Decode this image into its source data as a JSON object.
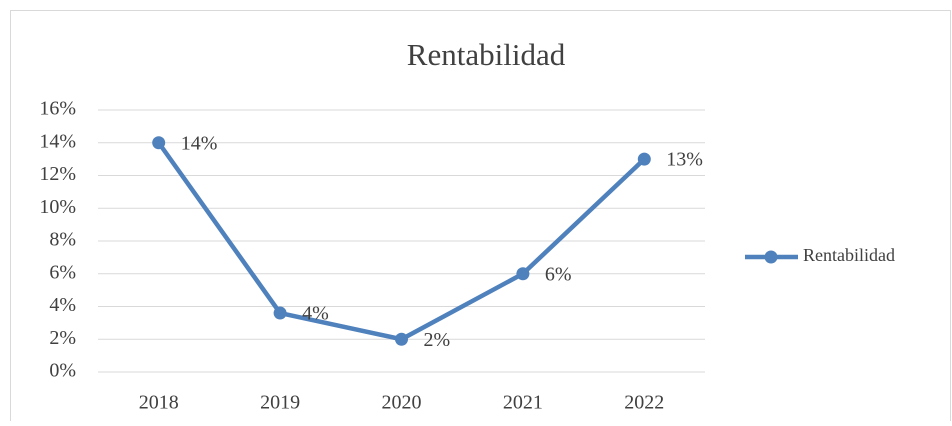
{
  "chart_data": {
    "type": "line",
    "title": "Rentabilidad",
    "categories": [
      "2018",
      "2019",
      "2020",
      "2021",
      "2022"
    ],
    "series": [
      {
        "name": "Rentabilidad",
        "color": "#4f81bd",
        "values": [
          14,
          3.6,
          2,
          6,
          13
        ],
        "value_labels": [
          "14%",
          "4%",
          "2%",
          "6%",
          "13%"
        ]
      }
    ],
    "ylim": [
      0,
      16
    ],
    "yticks": [
      {
        "value": 0,
        "label": "0%"
      },
      {
        "value": 2,
        "label": "2%"
      },
      {
        "value": 4,
        "label": "4%"
      },
      {
        "value": 6,
        "label": "6%"
      },
      {
        "value": 8,
        "label": "8%"
      },
      {
        "value": 10,
        "label": "10%"
      },
      {
        "value": 12,
        "label": "12%"
      },
      {
        "value": 14,
        "label": "14%"
      },
      {
        "value": 16,
        "label": "16%"
      }
    ],
    "grid": true,
    "legend": "right"
  }
}
